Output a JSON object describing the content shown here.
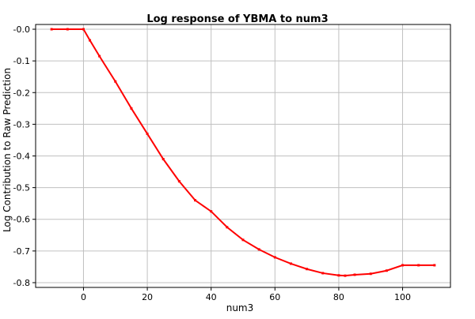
{
  "chart_data": {
    "type": "line",
    "title": "Log response of YBMA to num3",
    "xlabel": "num3",
    "ylabel": "Log Contribution to Raw Prediction",
    "xlim": [
      -15,
      115
    ],
    "ylim": [
      -0.815,
      0.015
    ],
    "xticks": [
      0,
      20,
      40,
      60,
      80,
      100
    ],
    "xtick_labels": [
      "0",
      "20",
      "40",
      "60",
      "80",
      "100"
    ],
    "yticks": [
      0.0,
      -0.1,
      -0.2,
      -0.3,
      -0.4,
      -0.5,
      -0.6,
      -0.7,
      -0.8
    ],
    "ytick_labels": [
      "-0.0",
      "-0.1",
      "-0.2",
      "-0.3",
      "-0.4",
      "-0.5",
      "-0.6",
      "-0.7",
      "-0.8"
    ],
    "grid": true,
    "series": [
      {
        "color": "#ff0000",
        "marker": "small-square",
        "x": [
          -10,
          -5,
          0,
          2,
          5,
          10,
          15,
          20,
          25,
          30,
          35,
          40,
          45,
          50,
          55,
          60,
          65,
          70,
          75,
          80,
          82,
          85,
          90,
          95,
          100,
          105,
          110
        ],
        "y": [
          0.0,
          0.0,
          0.0,
          -0.035,
          -0.085,
          -0.165,
          -0.25,
          -0.33,
          -0.41,
          -0.48,
          -0.54,
          -0.575,
          -0.625,
          -0.665,
          -0.695,
          -0.72,
          -0.74,
          -0.757,
          -0.77,
          -0.777,
          -0.778,
          -0.775,
          -0.772,
          -0.762,
          -0.745,
          -0.745,
          -0.745
        ]
      }
    ]
  }
}
